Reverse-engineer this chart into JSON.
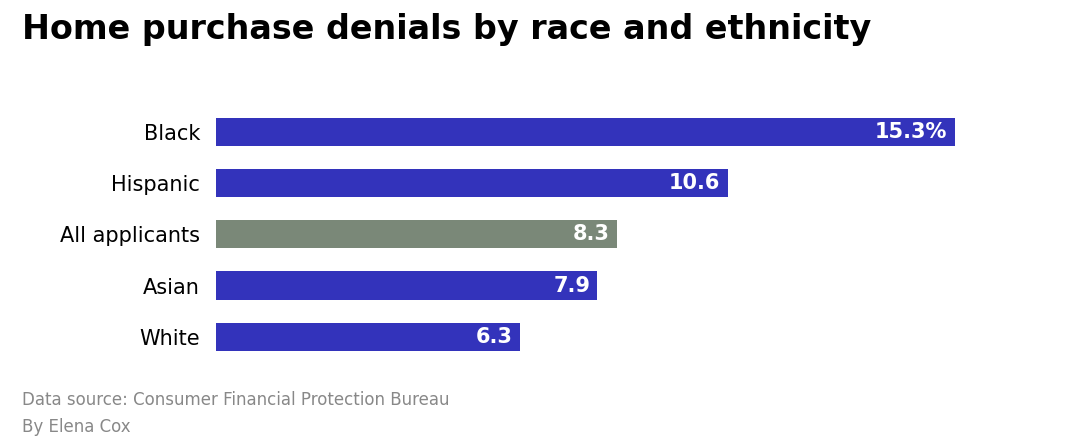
{
  "title": "Home purchase denials by race and ethnicity",
  "categories": [
    "White",
    "Asian",
    "All applicants",
    "Hispanic",
    "Black"
  ],
  "values": [
    6.3,
    7.9,
    8.3,
    10.6,
    15.3
  ],
  "labels": [
    "6.3",
    "7.9",
    "8.3",
    "10.6",
    "15.3%"
  ],
  "bar_colors": [
    "#3333bb",
    "#3333bb",
    "#7a8878",
    "#3333bb",
    "#3333bb"
  ],
  "text_color_inside": "#ffffff",
  "title_fontsize": 24,
  "title_fontweight": "bold",
  "bar_label_fontsize": 15,
  "category_label_fontsize": 15,
  "footnote_line1": "Data source: Consumer Financial Protection Bureau",
  "footnote_line2": "By Elena Cox",
  "footnote_fontsize": 12,
  "footnote_color": "#888888",
  "background_color": "#ffffff",
  "xlim": [
    0,
    17
  ],
  "bar_height": 0.55
}
